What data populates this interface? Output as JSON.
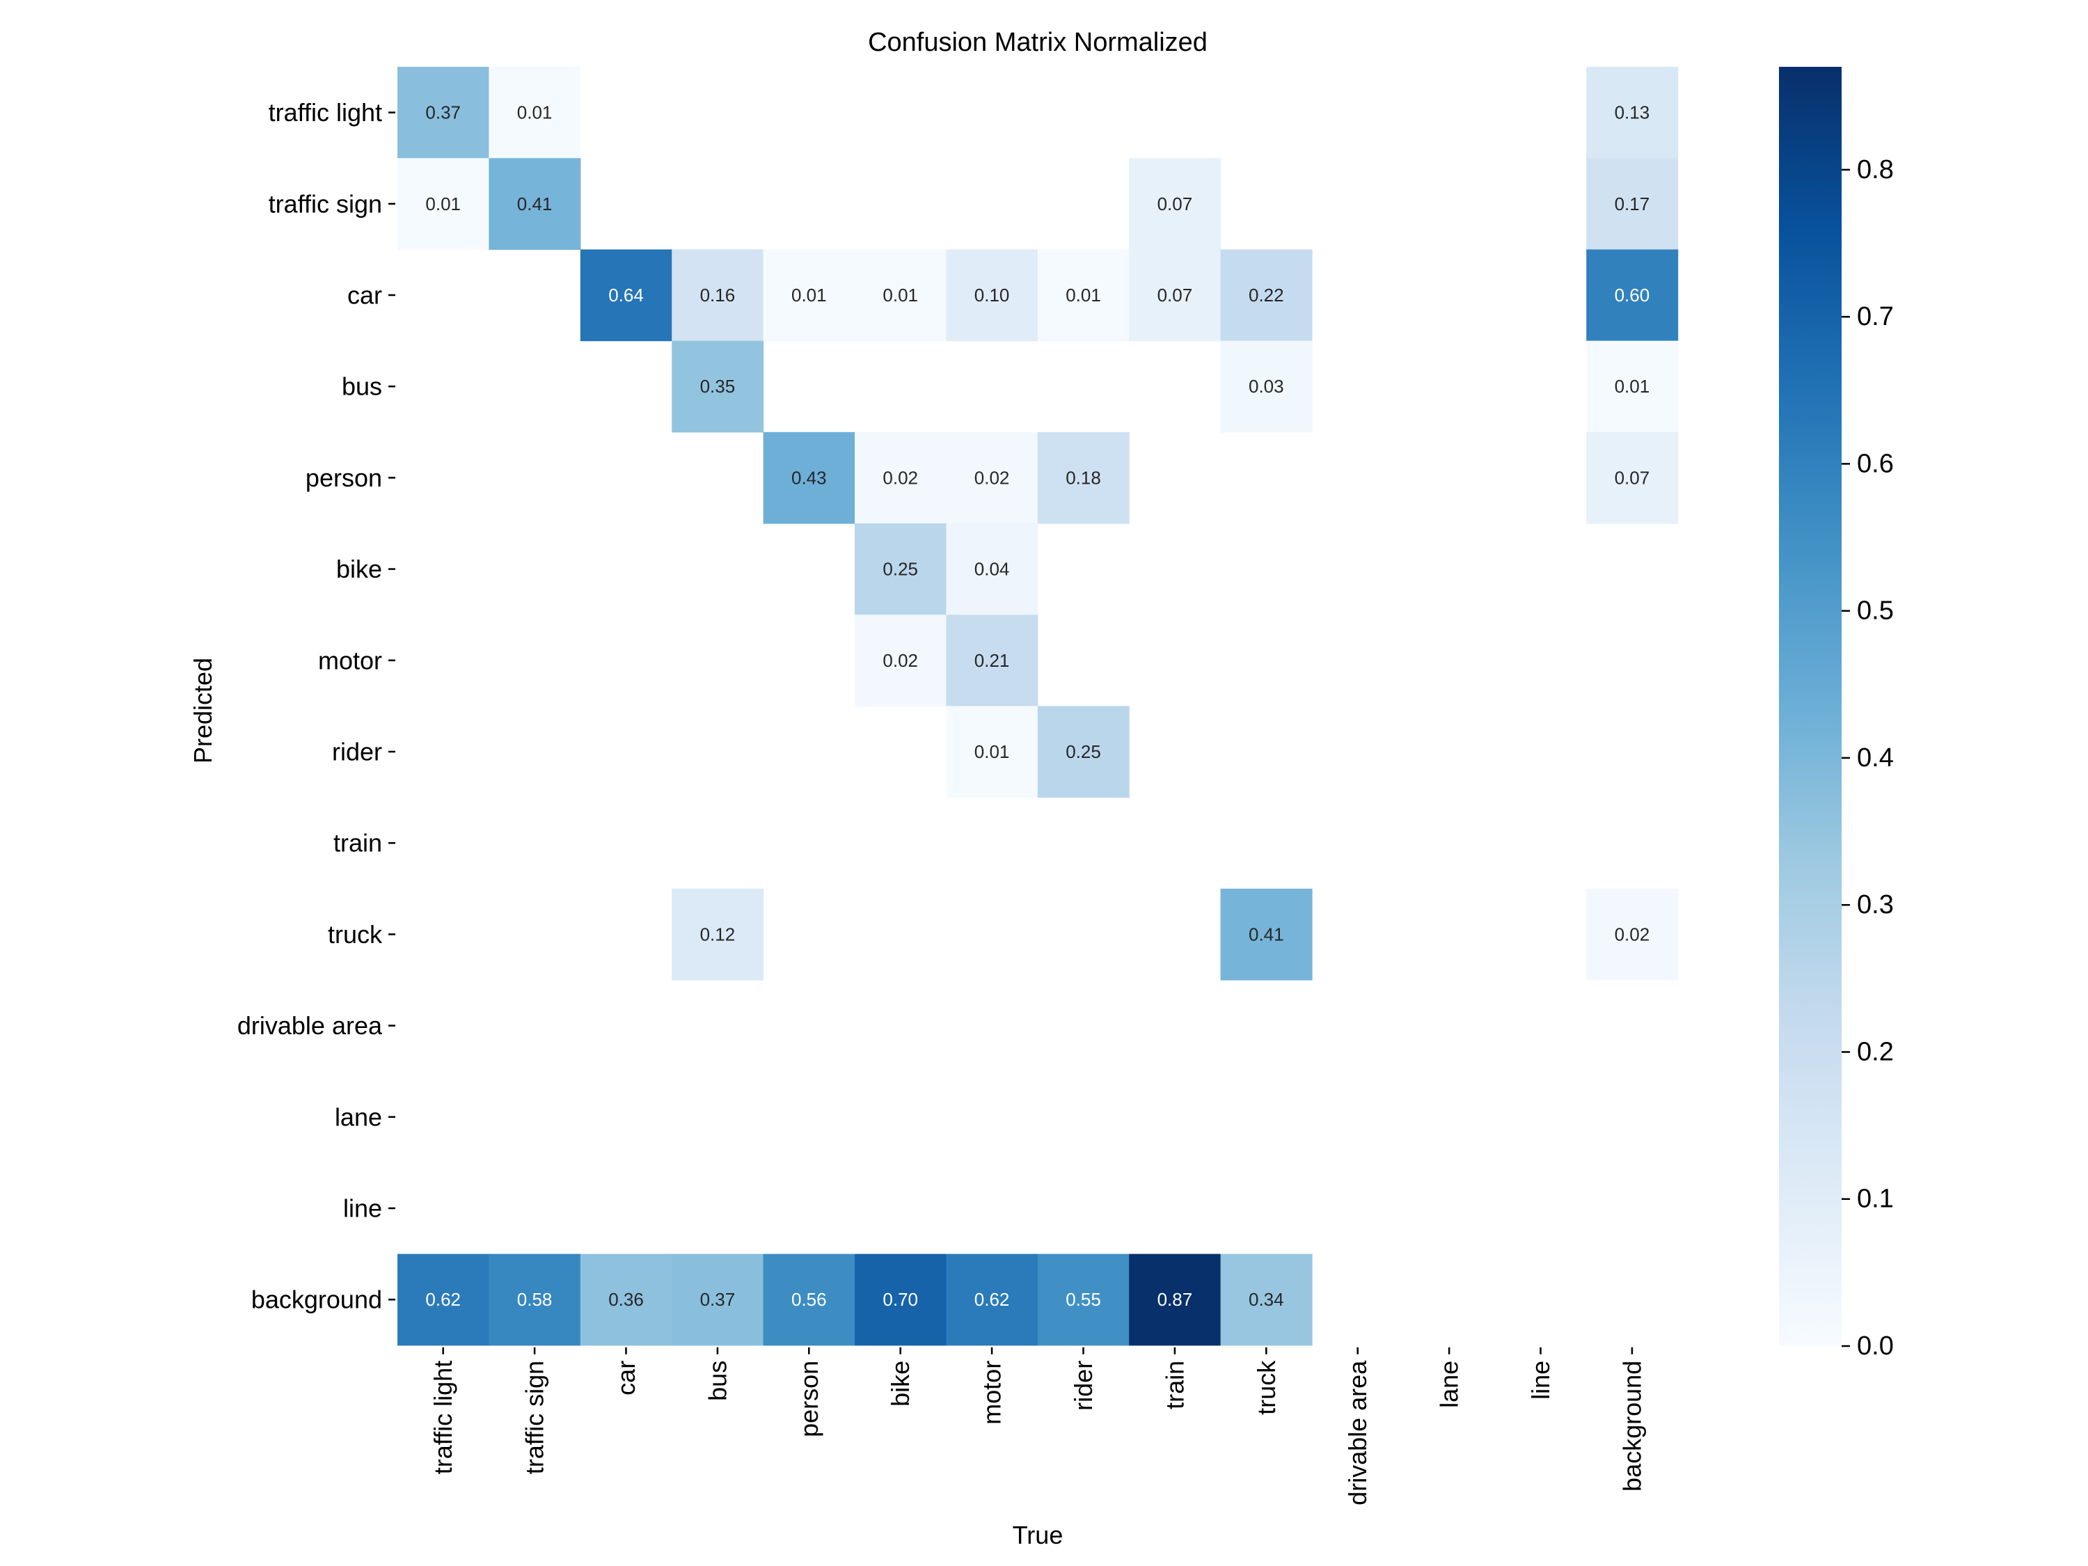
{
  "chart_data": {
    "type": "heatmap",
    "title": "Confusion Matrix Normalized",
    "xlabel": "True",
    "ylabel": "Predicted",
    "x_categories": [
      "traffic light",
      "traffic sign",
      "car",
      "bus",
      "person",
      "bike",
      "motor",
      "rider",
      "train",
      "truck",
      "drivable area",
      "lane",
      "line",
      "background"
    ],
    "y_categories": [
      "traffic light",
      "traffic sign",
      "car",
      "bus",
      "person",
      "bike",
      "motor",
      "rider",
      "train",
      "truck",
      "drivable area",
      "lane",
      "line",
      "background"
    ],
    "values": [
      [
        0.37,
        0.01,
        null,
        null,
        null,
        null,
        null,
        null,
        null,
        null,
        null,
        null,
        null,
        0.13
      ],
      [
        0.01,
        0.41,
        null,
        null,
        null,
        null,
        null,
        null,
        0.07,
        null,
        null,
        null,
        null,
        0.17
      ],
      [
        null,
        null,
        0.64,
        0.16,
        0.01,
        0.01,
        0.1,
        0.01,
        0.07,
        0.22,
        null,
        null,
        null,
        0.6
      ],
      [
        null,
        null,
        null,
        0.35,
        null,
        null,
        null,
        null,
        null,
        0.03,
        null,
        null,
        null,
        0.01
      ],
      [
        null,
        null,
        null,
        null,
        0.43,
        0.02,
        0.02,
        0.18,
        null,
        null,
        null,
        null,
        null,
        0.07
      ],
      [
        null,
        null,
        null,
        null,
        null,
        0.25,
        0.04,
        null,
        null,
        null,
        null,
        null,
        null,
        null
      ],
      [
        null,
        null,
        null,
        null,
        null,
        0.02,
        0.21,
        null,
        null,
        null,
        null,
        null,
        null,
        null
      ],
      [
        null,
        null,
        null,
        null,
        null,
        null,
        0.01,
        0.25,
        null,
        null,
        null,
        null,
        null,
        null
      ],
      [
        null,
        null,
        null,
        null,
        null,
        null,
        null,
        null,
        null,
        null,
        null,
        null,
        null,
        null
      ],
      [
        null,
        null,
        null,
        0.12,
        null,
        null,
        null,
        null,
        null,
        0.41,
        null,
        null,
        null,
        0.02
      ],
      [
        null,
        null,
        null,
        null,
        null,
        null,
        null,
        null,
        null,
        null,
        null,
        null,
        null,
        null
      ],
      [
        null,
        null,
        null,
        null,
        null,
        null,
        null,
        null,
        null,
        null,
        null,
        null,
        null,
        null
      ],
      [
        null,
        null,
        null,
        null,
        null,
        null,
        null,
        null,
        null,
        null,
        null,
        null,
        null,
        null
      ],
      [
        0.62,
        0.58,
        0.36,
        0.37,
        0.56,
        0.7,
        0.62,
        0.55,
        0.87,
        0.34,
        null,
        null,
        null,
        null
      ]
    ],
    "colorbar": {
      "colormap": "Blues",
      "range": [
        0,
        0.87
      ],
      "ticks": [
        0.0,
        0.1,
        0.2,
        0.3,
        0.4,
        0.5,
        0.6,
        0.7,
        0.8
      ],
      "tick_labels": [
        "0.0",
        "0.1",
        "0.2",
        "0.3",
        "0.4",
        "0.5",
        "0.6",
        "0.7",
        "0.8"
      ]
    },
    "grid": false,
    "colors": [
      "#f7fbff",
      "#deebf7",
      "#c6dbef",
      "#9ecae1",
      "#6baed6",
      "#4292c6",
      "#2171b5",
      "#08519c",
      "#08306b"
    ]
  }
}
